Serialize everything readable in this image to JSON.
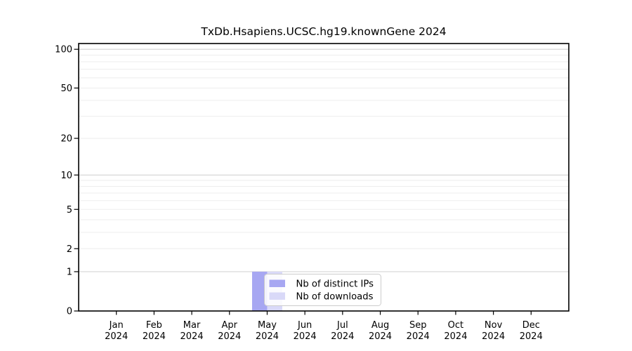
{
  "chart_data": {
    "type": "bar",
    "title": "TxDb.Hsapiens.UCSC.hg19.knownGene 2024",
    "categories": [
      "Jan 2024",
      "Feb 2024",
      "Mar 2024",
      "Apr 2024",
      "May 2024",
      "Jun 2024",
      "Jul 2024",
      "Aug 2024",
      "Sep 2024",
      "Oct 2024",
      "Nov 2024",
      "Dec 2024"
    ],
    "series": [
      {
        "name": "Nb of distinct IPs",
        "color": "#a7a7f2",
        "values": [
          0,
          0,
          0,
          0,
          1,
          0,
          0,
          0,
          0,
          0,
          0,
          0
        ]
      },
      {
        "name": "Nb of downloads",
        "color": "#d9d9f8",
        "values": [
          0,
          0,
          0,
          0,
          1,
          0,
          0,
          0,
          0,
          0,
          0,
          0
        ]
      }
    ],
    "xlabel": "",
    "ylabel": "",
    "yscale": "log1p",
    "ylim": [
      0,
      110
    ],
    "ytick_values": [
      0,
      1,
      2,
      5,
      10,
      20,
      50,
      100
    ],
    "ytick_labels": [
      "0",
      "1",
      "2",
      "5",
      "10",
      "20",
      "50",
      "100"
    ],
    "grid": true,
    "grid_major_values": [
      1,
      10,
      100
    ],
    "grid_minor_values": [
      2,
      3,
      4,
      5,
      6,
      7,
      8,
      9,
      20,
      30,
      40,
      50,
      60,
      70,
      80,
      90
    ],
    "legend_position": "inside-bottom-center",
    "colors": {
      "grid_major": "#d2d2d2",
      "grid_minor": "#ededed",
      "axis": "#000000",
      "legend_border": "#cccccc",
      "legend_bg": "#ffffff"
    }
  }
}
